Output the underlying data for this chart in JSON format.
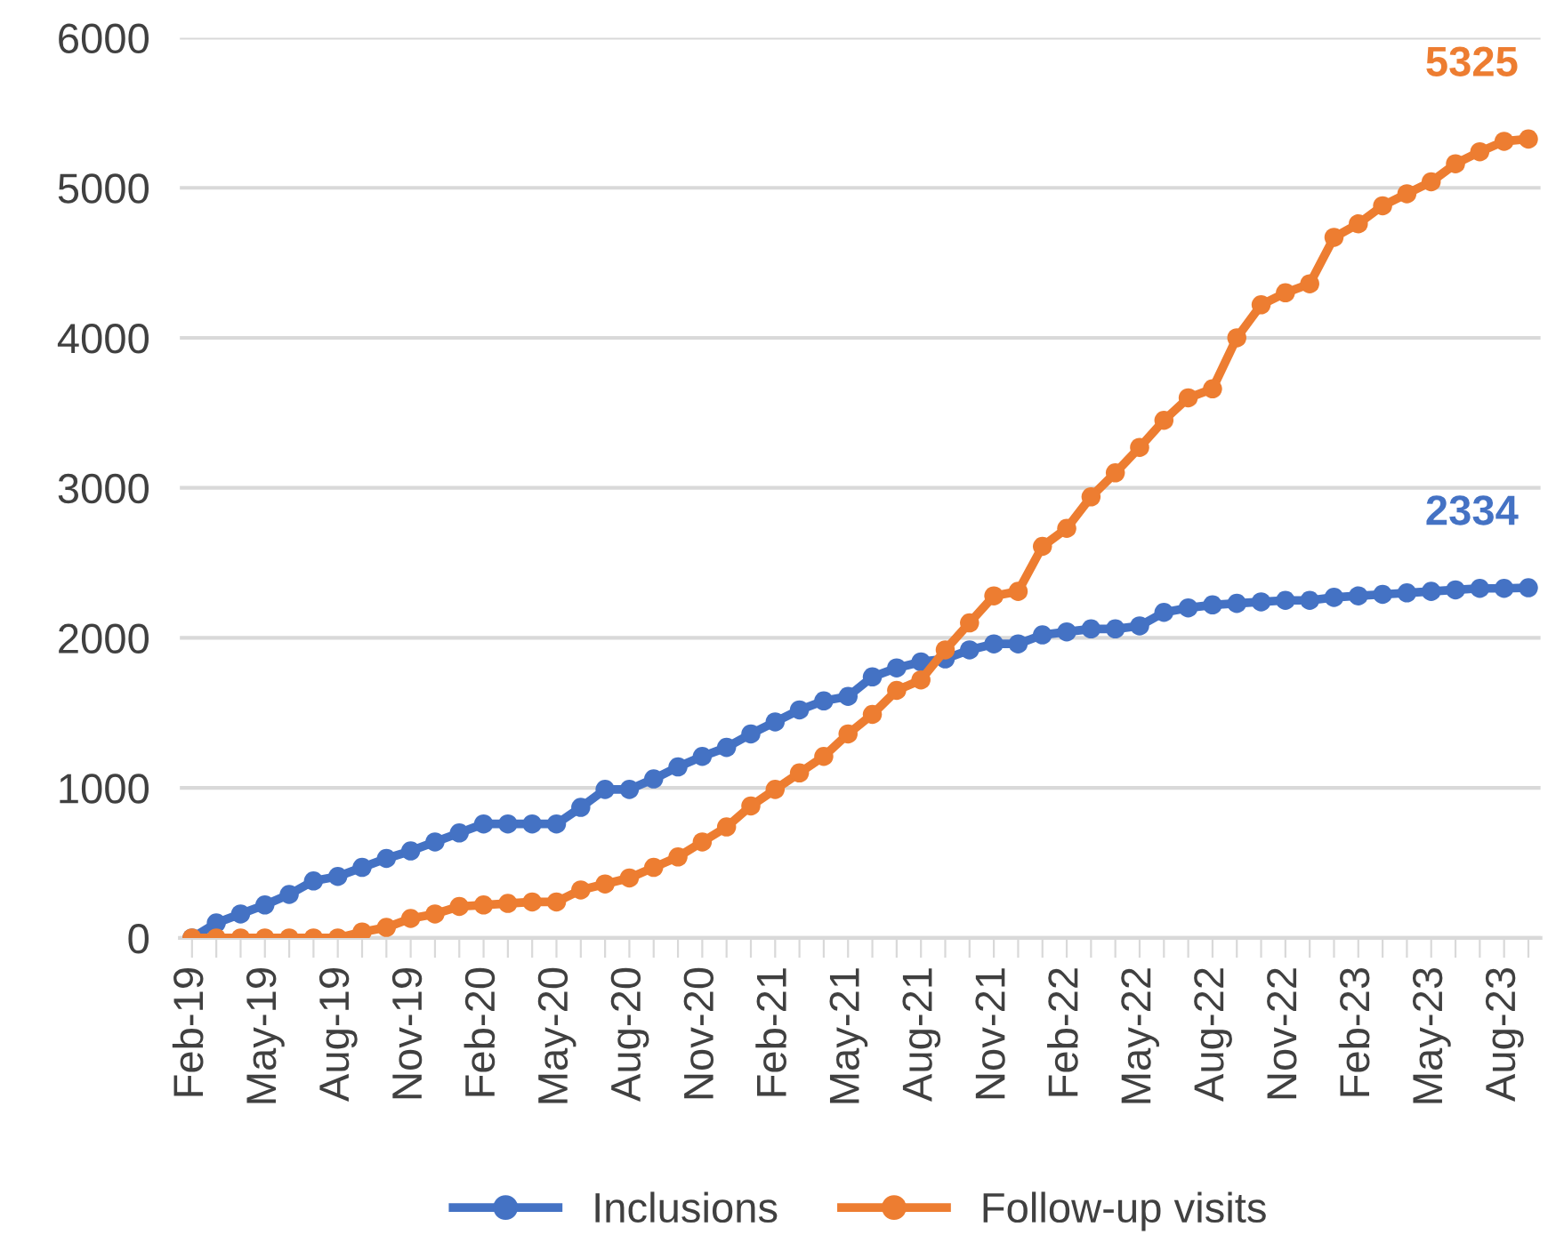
{
  "chart_data": {
    "type": "line",
    "categories": [
      "Feb-19",
      null,
      null,
      "May-19",
      null,
      null,
      "Aug-19",
      null,
      null,
      "Nov-19",
      null,
      null,
      "Feb-20",
      null,
      null,
      "May-20",
      null,
      null,
      "Aug-20",
      null,
      null,
      "Nov-20",
      null,
      null,
      "Feb-21",
      null,
      null,
      "May-21",
      null,
      null,
      "Aug-21",
      null,
      null,
      "Nov-21",
      null,
      null,
      "Feb-22",
      null,
      null,
      "May-22",
      null,
      null,
      "Aug-22",
      null,
      null,
      "Nov-22",
      null,
      null,
      "Feb-23",
      null,
      null,
      "May-23",
      null,
      null,
      "Aug-23",
      null
    ],
    "series": [
      {
        "name": "Inclusions",
        "color": "#4472c4",
        "values": [
          0,
          100,
          160,
          220,
          290,
          380,
          410,
          470,
          530,
          580,
          640,
          700,
          760,
          760,
          760,
          760,
          870,
          990,
          990,
          1060,
          1140,
          1210,
          1270,
          1360,
          1440,
          1520,
          1580,
          1610,
          1740,
          1800,
          1840,
          1860,
          1920,
          1960,
          1960,
          2020,
          2040,
          2060,
          2060,
          2080,
          2170,
          2200,
          2220,
          2230,
          2240,
          2250,
          2250,
          2270,
          2280,
          2290,
          2300,
          2310,
          2320,
          2330,
          2330,
          2334
        ],
        "value_labels": [
          null,
          null,
          null,
          null,
          null,
          null,
          null,
          null,
          null,
          null,
          null,
          null,
          null,
          null,
          null,
          null,
          null,
          null,
          null,
          null,
          null,
          null,
          null,
          null,
          null,
          null,
          null,
          null,
          null,
          null,
          null,
          null,
          null,
          null,
          null,
          null,
          null,
          null,
          null,
          null,
          null,
          null,
          null,
          null,
          null,
          null,
          null,
          null,
          null,
          null,
          null,
          null,
          null,
          null,
          null,
          "2334"
        ]
      },
      {
        "name": "Follow-up visits",
        "color": "#ed7d31",
        "values": [
          0,
          0,
          0,
          0,
          0,
          0,
          0,
          40,
          70,
          130,
          160,
          210,
          220,
          230,
          240,
          240,
          320,
          360,
          400,
          470,
          540,
          640,
          740,
          880,
          990,
          1100,
          1210,
          1360,
          1490,
          1650,
          1720,
          1920,
          2100,
          2280,
          2310,
          2610,
          2730,
          2940,
          3100,
          3270,
          3450,
          3600,
          3660,
          4000,
          4220,
          4300,
          4360,
          4670,
          4760,
          4880,
          4960,
          5040,
          5160,
          5240,
          5310,
          5325
        ],
        "value_labels": [
          null,
          null,
          null,
          null,
          null,
          null,
          null,
          null,
          null,
          null,
          null,
          null,
          null,
          null,
          null,
          null,
          null,
          null,
          null,
          null,
          null,
          null,
          null,
          null,
          null,
          null,
          null,
          null,
          null,
          null,
          null,
          null,
          null,
          null,
          null,
          null,
          null,
          null,
          null,
          null,
          null,
          null,
          null,
          null,
          null,
          null,
          null,
          null,
          null,
          null,
          null,
          null,
          null,
          null,
          null,
          "5325"
        ]
      }
    ],
    "ylim": [
      0,
      6000
    ],
    "yticks": [
      0,
      1000,
      2000,
      3000,
      4000,
      5000,
      6000
    ],
    "grid": "y",
    "legend": "bottom",
    "marker": "circle",
    "line_style": "solid"
  }
}
